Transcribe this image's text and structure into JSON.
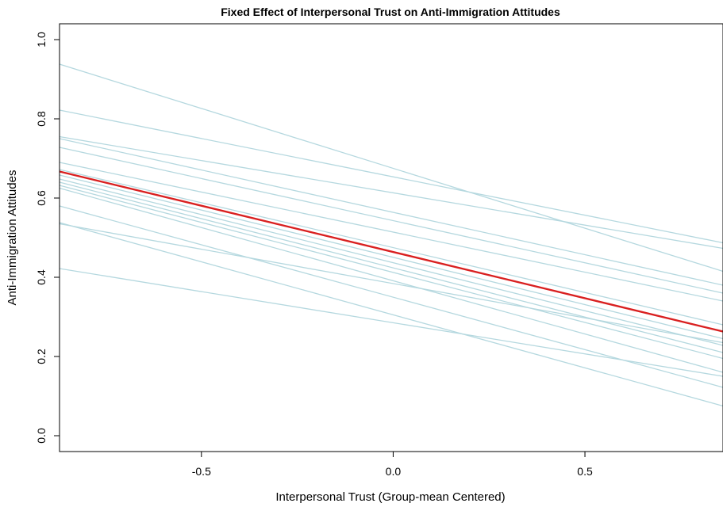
{
  "chart_data": {
    "type": "line",
    "title": "Fixed Effect of Interpersonal Trust on Anti-Immigration Attitudes",
    "xlabel": "Interpersonal Trust (Group-mean Centered)",
    "ylabel": "Anti-Immigration Attitudes",
    "xlim": [
      -0.87,
      0.86
    ],
    "ylim": [
      -0.04,
      1.04
    ],
    "x_ticks": [
      -0.5,
      0.0,
      0.5
    ],
    "x_tick_labels": [
      "-0.5",
      "0.0",
      "0.5"
    ],
    "y_ticks": [
      0.0,
      0.2,
      0.4,
      0.6,
      0.8,
      1.0
    ],
    "y_tick_labels": [
      "0.0",
      "0.2",
      "0.4",
      "0.6",
      "0.8",
      "1.0"
    ],
    "grid": false,
    "legend": "none",
    "group_color": "#b5d8df",
    "fixed_color": "#d92020",
    "fixed_effect": {
      "x": [
        -0.87,
        0.86
      ],
      "y": [
        0.667,
        0.263
      ]
    },
    "series": [
      {
        "x": [
          -0.87,
          0.86
        ],
        "y": [
          0.938,
          0.415
        ]
      },
      {
        "x": [
          -0.87,
          0.86
        ],
        "y": [
          0.822,
          0.487
        ]
      },
      {
        "x": [
          -0.87,
          0.86
        ],
        "y": [
          0.755,
          0.473
        ]
      },
      {
        "x": [
          -0.87,
          0.86
        ],
        "y": [
          0.75,
          0.38
        ]
      },
      {
        "x": [
          -0.87,
          0.86
        ],
        "y": [
          0.728,
          0.36
        ]
      },
      {
        "x": [
          -0.87,
          0.86
        ],
        "y": [
          0.69,
          0.34
        ]
      },
      {
        "x": [
          -0.87,
          0.86
        ],
        "y": [
          0.672,
          0.28
        ]
      },
      {
        "x": [
          -0.87,
          0.86
        ],
        "y": [
          0.658,
          0.245
        ]
      },
      {
        "x": [
          -0.87,
          0.86
        ],
        "y": [
          0.648,
          0.228
        ]
      },
      {
        "x": [
          -0.87,
          0.86
        ],
        "y": [
          0.64,
          0.21
        ]
      },
      {
        "x": [
          -0.87,
          0.86
        ],
        "y": [
          0.632,
          0.195
        ]
      },
      {
        "x": [
          -0.87,
          0.86
        ],
        "y": [
          0.625,
          0.16
        ]
      },
      {
        "x": [
          -0.87,
          0.86
        ],
        "y": [
          0.58,
          0.122
        ]
      },
      {
        "x": [
          -0.87,
          0.86
        ],
        "y": [
          0.538,
          0.075
        ]
      },
      {
        "x": [
          -0.87,
          0.86
        ],
        "y": [
          0.535,
          0.235
        ]
      },
      {
        "x": [
          -0.87,
          0.86
        ],
        "y": [
          0.422,
          0.15
        ]
      }
    ]
  }
}
